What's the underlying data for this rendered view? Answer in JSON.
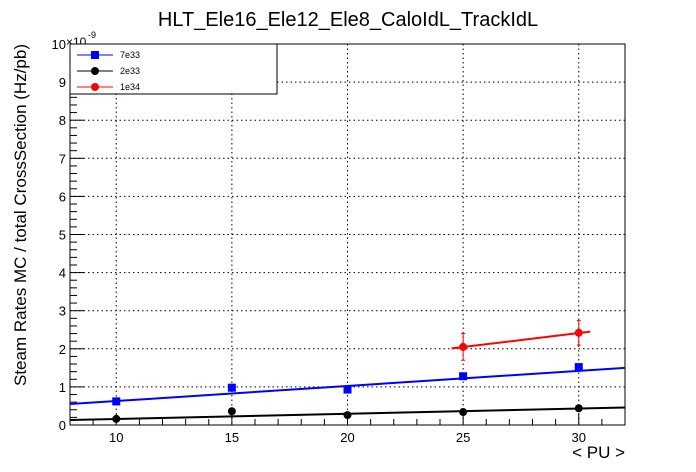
{
  "chart_data": {
    "type": "scatter",
    "title": "HLT_Ele16_Ele12_Ele8_CaloIdL_TrackIdL",
    "xlabel": "< PU >",
    "ylabel": "Steam Rates MC / total CrossSection (Hz/pb)",
    "y_multiplier_label": "×10",
    "y_multiplier_exponent": "-9",
    "xlim": [
      8,
      32
    ],
    "ylim": [
      0,
      10
    ],
    "x_ticks": [
      10,
      15,
      20,
      25,
      30
    ],
    "y_ticks": [
      0,
      1,
      2,
      3,
      4,
      5,
      6,
      7,
      8,
      9,
      10
    ],
    "grid": true,
    "legend_position": "top-left",
    "series": [
      {
        "name": "7e33",
        "color": "#0000ff",
        "marker": "square",
        "points": [
          {
            "x": 10,
            "y": 0.62,
            "err": 0.05
          },
          {
            "x": 15,
            "y": 0.98,
            "err": 0.06
          },
          {
            "x": 20,
            "y": 0.93,
            "err": 0.06
          },
          {
            "x": 25,
            "y": 1.28,
            "err": 0.07
          },
          {
            "x": 30,
            "y": 1.52,
            "err": 0.08
          }
        ],
        "fit": [
          [
            8,
            0.55
          ],
          [
            32,
            1.5
          ]
        ]
      },
      {
        "name": "2e33",
        "color": "#000000",
        "marker": "circle",
        "points": [
          {
            "x": 10,
            "y": 0.16,
            "err": 0.03
          },
          {
            "x": 15,
            "y": 0.36,
            "err": 0.04
          },
          {
            "x": 20,
            "y": 0.26,
            "err": 0.04
          },
          {
            "x": 25,
            "y": 0.34,
            "err": 0.04
          },
          {
            "x": 30,
            "y": 0.44,
            "err": 0.05
          }
        ],
        "fit": [
          [
            8,
            0.13
          ],
          [
            32,
            0.46
          ]
        ]
      },
      {
        "name": "1e34",
        "color": "#ff0000",
        "marker": "circle",
        "points": [
          {
            "x": 25,
            "y": 2.05,
            "err": 0.35
          },
          {
            "x": 30,
            "y": 2.42,
            "err": 0.32
          }
        ],
        "fit": [
          [
            24.5,
            2.01
          ],
          [
            30.5,
            2.45
          ]
        ]
      }
    ]
  }
}
